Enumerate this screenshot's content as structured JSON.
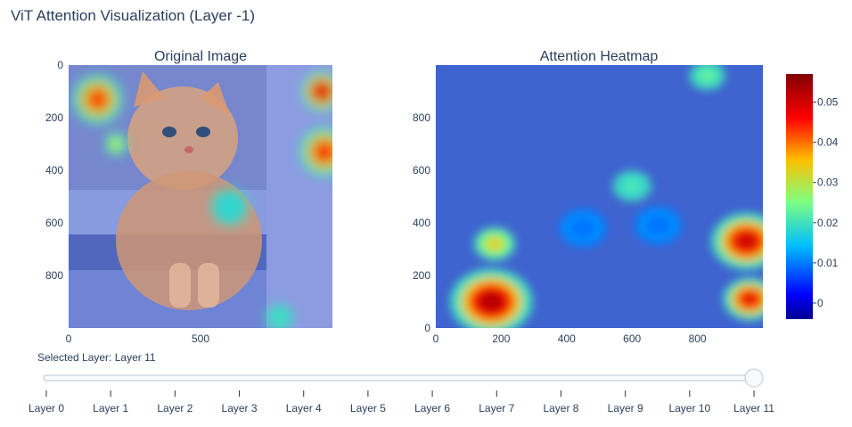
{
  "title": "ViT Attention Visualization (Layer -1)",
  "colors": {
    "text": "#2a3f5f",
    "overlay_base": "#6f7fd8",
    "heatmap_base": "#3f63cf"
  },
  "chart_data": [
    {
      "type": "heatmap",
      "title": "Original Image",
      "description_kind": "image-with-attention-overlay",
      "x_ticks": [
        "0",
        "500"
      ],
      "y_ticks": [
        "0",
        "200",
        "400",
        "600",
        "800"
      ],
      "x_range": [
        0,
        1000
      ],
      "y_range": [
        0,
        1000
      ],
      "y_reversed": true,
      "hotspots": [
        {
          "x": 110,
          "y": 130,
          "r": 55,
          "v": 0.045
        },
        {
          "x": 180,
          "y": 300,
          "r": 25,
          "v": 0.032
        },
        {
          "x": 960,
          "y": 100,
          "r": 45,
          "v": 0.05
        },
        {
          "x": 970,
          "y": 330,
          "r": 55,
          "v": 0.046
        },
        {
          "x": 610,
          "y": 540,
          "r": 40,
          "v": 0.02
        },
        {
          "x": 800,
          "y": 960,
          "r": 30,
          "v": 0.022
        }
      ]
    },
    {
      "type": "heatmap",
      "title": "Attention Heatmap",
      "x_ticks": [
        "0",
        "200",
        "400",
        "600",
        "800"
      ],
      "y_ticks": [
        "0",
        "200",
        "400",
        "600",
        "800"
      ],
      "x_range": [
        0,
        1000
      ],
      "y_range": [
        0,
        1000
      ],
      "hotspots": [
        {
          "x": 170,
          "y": 100,
          "r": 70,
          "v": 0.052
        },
        {
          "x": 180,
          "y": 320,
          "r": 35,
          "v": 0.034
        },
        {
          "x": 950,
          "y": 330,
          "r": 60,
          "v": 0.05
        },
        {
          "x": 960,
          "y": 110,
          "r": 45,
          "v": 0.048
        },
        {
          "x": 600,
          "y": 540,
          "r": 32,
          "v": 0.022
        },
        {
          "x": 830,
          "y": 960,
          "r": 30,
          "v": 0.024
        },
        {
          "x": 450,
          "y": 380,
          "r": 40,
          "v": 0.01
        },
        {
          "x": 680,
          "y": 390,
          "r": 40,
          "v": 0.01
        }
      ]
    }
  ],
  "colorbar": {
    "ticks": [
      "0.05",
      "0.04",
      "0.03",
      "0.02",
      "0.01",
      "0"
    ],
    "tick_values": [
      0.05,
      0.04,
      0.03,
      0.02,
      0.01,
      0
    ],
    "range": [
      -0.004,
      0.057
    ],
    "colorscale": [
      "#00008f",
      "#0000ff",
      "#00bfff",
      "#7fff7f",
      "#ffbf00",
      "#ff0000",
      "#800000"
    ]
  },
  "slider": {
    "current_prefix": "Selected Layer: ",
    "current_value": "Layer 11",
    "selected_index": 11,
    "steps": [
      "Layer 0",
      "Layer 1",
      "Layer 2",
      "Layer 3",
      "Layer 4",
      "Layer 5",
      "Layer 6",
      "Layer 7",
      "Layer 8",
      "Layer 9",
      "Layer 10",
      "Layer 11"
    ]
  }
}
